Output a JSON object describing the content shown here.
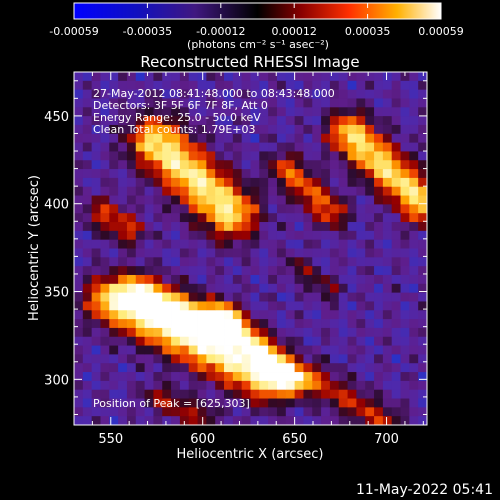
{
  "colorbar": {
    "ticks": [
      "-0.00059",
      "-0.00035",
      "-0.00012",
      "0.00012",
      "0.00035",
      "0.00059"
    ],
    "units_label": "(photons cm⁻² s⁻¹ asec⁻²)"
  },
  "chart_data": {
    "type": "heatmap",
    "title": "Reconstructed RHESSI Image",
    "xlabel": "Heliocentric X (arcsec)",
    "ylabel": "Heliocentric Y (arcsec)",
    "xlim": [
      530,
      722
    ],
    "ylim": [
      274,
      475
    ],
    "x_ticks": [
      550,
      600,
      650,
      700
    ],
    "y_ticks": [
      300,
      350,
      400,
      450
    ],
    "value_range": [
      -0.00059,
      0.00059
    ],
    "annotations": [
      "27-May-2012 08:41:48.000 to 08:43:48.000",
      "Detectors: 3F 5F 6F 7F 8F, Att 0",
      "Energy Range: 25.0 - 50.0 keV",
      "Clean     Total counts: 1.79E+03"
    ],
    "peak_label": "Position of Peak = [625,303]",
    "peak": [
      625,
      303
    ]
  },
  "footer": {
    "date": "11-May-2022 05:41"
  }
}
